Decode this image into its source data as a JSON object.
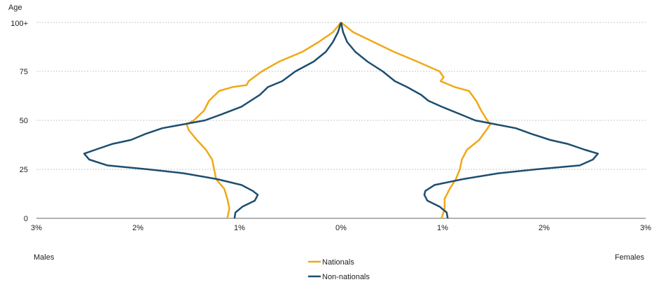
{
  "chart_data": {
    "type": "line",
    "ylabel": "Age",
    "y_ticks": [
      "0",
      "25",
      "50",
      "75",
      "100+"
    ],
    "x_ticks": [
      "3%",
      "2%",
      "1%",
      "0%",
      "1%",
      "2%",
      "3%"
    ],
    "xlim": [
      -3,
      3
    ],
    "ylim": [
      0,
      100
    ],
    "grid": "horizontal",
    "left_label": "Males",
    "right_label": "Females",
    "legend_position": "bottom-center",
    "series": [
      {
        "name": "Nationals",
        "color": "#f0a818",
        "males": [
          [
            0,
            1.12
          ],
          [
            5,
            1.1
          ],
          [
            10,
            1.12
          ],
          [
            15,
            1.15
          ],
          [
            20,
            1.23
          ],
          [
            25,
            1.25
          ],
          [
            30,
            1.27
          ],
          [
            35,
            1.33
          ],
          [
            40,
            1.42
          ],
          [
            45,
            1.5
          ],
          [
            48,
            1.52
          ],
          [
            50,
            1.45
          ],
          [
            55,
            1.35
          ],
          [
            60,
            1.3
          ],
          [
            65,
            1.2
          ],
          [
            67,
            1.07
          ],
          [
            68,
            0.93
          ],
          [
            70,
            0.91
          ],
          [
            75,
            0.78
          ],
          [
            80,
            0.61
          ],
          [
            85,
            0.38
          ],
          [
            90,
            0.22
          ],
          [
            95,
            0.08
          ],
          [
            100,
            0.0
          ]
        ],
        "females": [
          [
            0,
            0.99
          ],
          [
            5,
            1.02
          ],
          [
            10,
            1.02
          ],
          [
            15,
            1.07
          ],
          [
            20,
            1.13
          ],
          [
            25,
            1.17
          ],
          [
            30,
            1.19
          ],
          [
            35,
            1.24
          ],
          [
            40,
            1.36
          ],
          [
            45,
            1.43
          ],
          [
            48,
            1.47
          ],
          [
            50,
            1.44
          ],
          [
            55,
            1.38
          ],
          [
            60,
            1.33
          ],
          [
            65,
            1.26
          ],
          [
            67,
            1.12
          ],
          [
            70,
            0.98
          ],
          [
            72,
            1.01
          ],
          [
            75,
            0.97
          ],
          [
            80,
            0.75
          ],
          [
            85,
            0.52
          ],
          [
            90,
            0.32
          ],
          [
            95,
            0.12
          ],
          [
            100,
            0.0
          ]
        ]
      },
      {
        "name": "Non-nationals",
        "color": "#1d4e6f",
        "males": [
          [
            0,
            1.05
          ],
          [
            3,
            1.04
          ],
          [
            6,
            0.97
          ],
          [
            9,
            0.85
          ],
          [
            12,
            0.82
          ],
          [
            14,
            0.87
          ],
          [
            17,
            0.98
          ],
          [
            20,
            1.22
          ],
          [
            23,
            1.55
          ],
          [
            25,
            1.9
          ],
          [
            27,
            2.3
          ],
          [
            30,
            2.48
          ],
          [
            33,
            2.53
          ],
          [
            35,
            2.42
          ],
          [
            38,
            2.25
          ],
          [
            40,
            2.07
          ],
          [
            43,
            1.93
          ],
          [
            46,
            1.76
          ],
          [
            48,
            1.55
          ],
          [
            50,
            1.34
          ],
          [
            53,
            1.18
          ],
          [
            57,
            0.98
          ],
          [
            60,
            0.89
          ],
          [
            63,
            0.8
          ],
          [
            67,
            0.72
          ],
          [
            70,
            0.58
          ],
          [
            75,
            0.45
          ],
          [
            80,
            0.27
          ],
          [
            85,
            0.15
          ],
          [
            90,
            0.08
          ],
          [
            95,
            0.03
          ],
          [
            100,
            0.0
          ]
        ],
        "females": [
          [
            0,
            1.05
          ],
          [
            3,
            1.04
          ],
          [
            6,
            0.97
          ],
          [
            9,
            0.85
          ],
          [
            12,
            0.82
          ],
          [
            14,
            0.83
          ],
          [
            17,
            0.92
          ],
          [
            20,
            1.2
          ],
          [
            23,
            1.55
          ],
          [
            25,
            1.92
          ],
          [
            27,
            2.35
          ],
          [
            30,
            2.48
          ],
          [
            33,
            2.53
          ],
          [
            35,
            2.4
          ],
          [
            38,
            2.23
          ],
          [
            40,
            2.06
          ],
          [
            43,
            1.88
          ],
          [
            46,
            1.72
          ],
          [
            48,
            1.52
          ],
          [
            50,
            1.32
          ],
          [
            53,
            1.18
          ],
          [
            57,
            0.99
          ],
          [
            60,
            0.86
          ],
          [
            63,
            0.79
          ],
          [
            67,
            0.65
          ],
          [
            70,
            0.53
          ],
          [
            75,
            0.41
          ],
          [
            80,
            0.26
          ],
          [
            85,
            0.14
          ],
          [
            90,
            0.06
          ],
          [
            95,
            0.02
          ],
          [
            100,
            0.0
          ]
        ]
      }
    ]
  }
}
